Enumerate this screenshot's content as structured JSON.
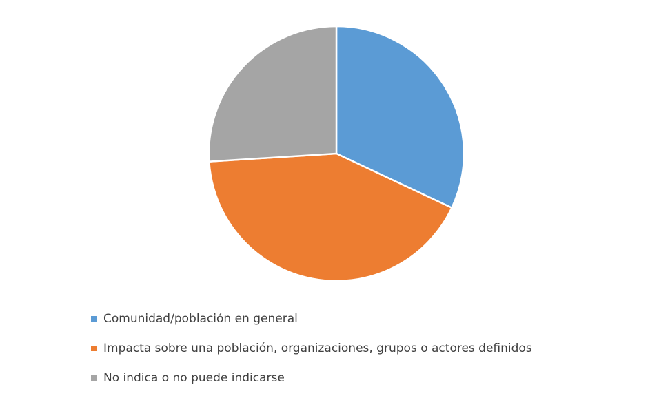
{
  "chart_data": {
    "type": "pie",
    "categories": [
      "Comunidad/población en general",
      "Impacta sobre una población, organizaciones, grupos o actores definidos",
      "No indica o no puede indicarse"
    ],
    "values": [
      32,
      42,
      26
    ],
    "colors": [
      "#5b9bd5",
      "#ed7d31",
      "#a5a5a5"
    ],
    "legend": "bottom"
  }
}
